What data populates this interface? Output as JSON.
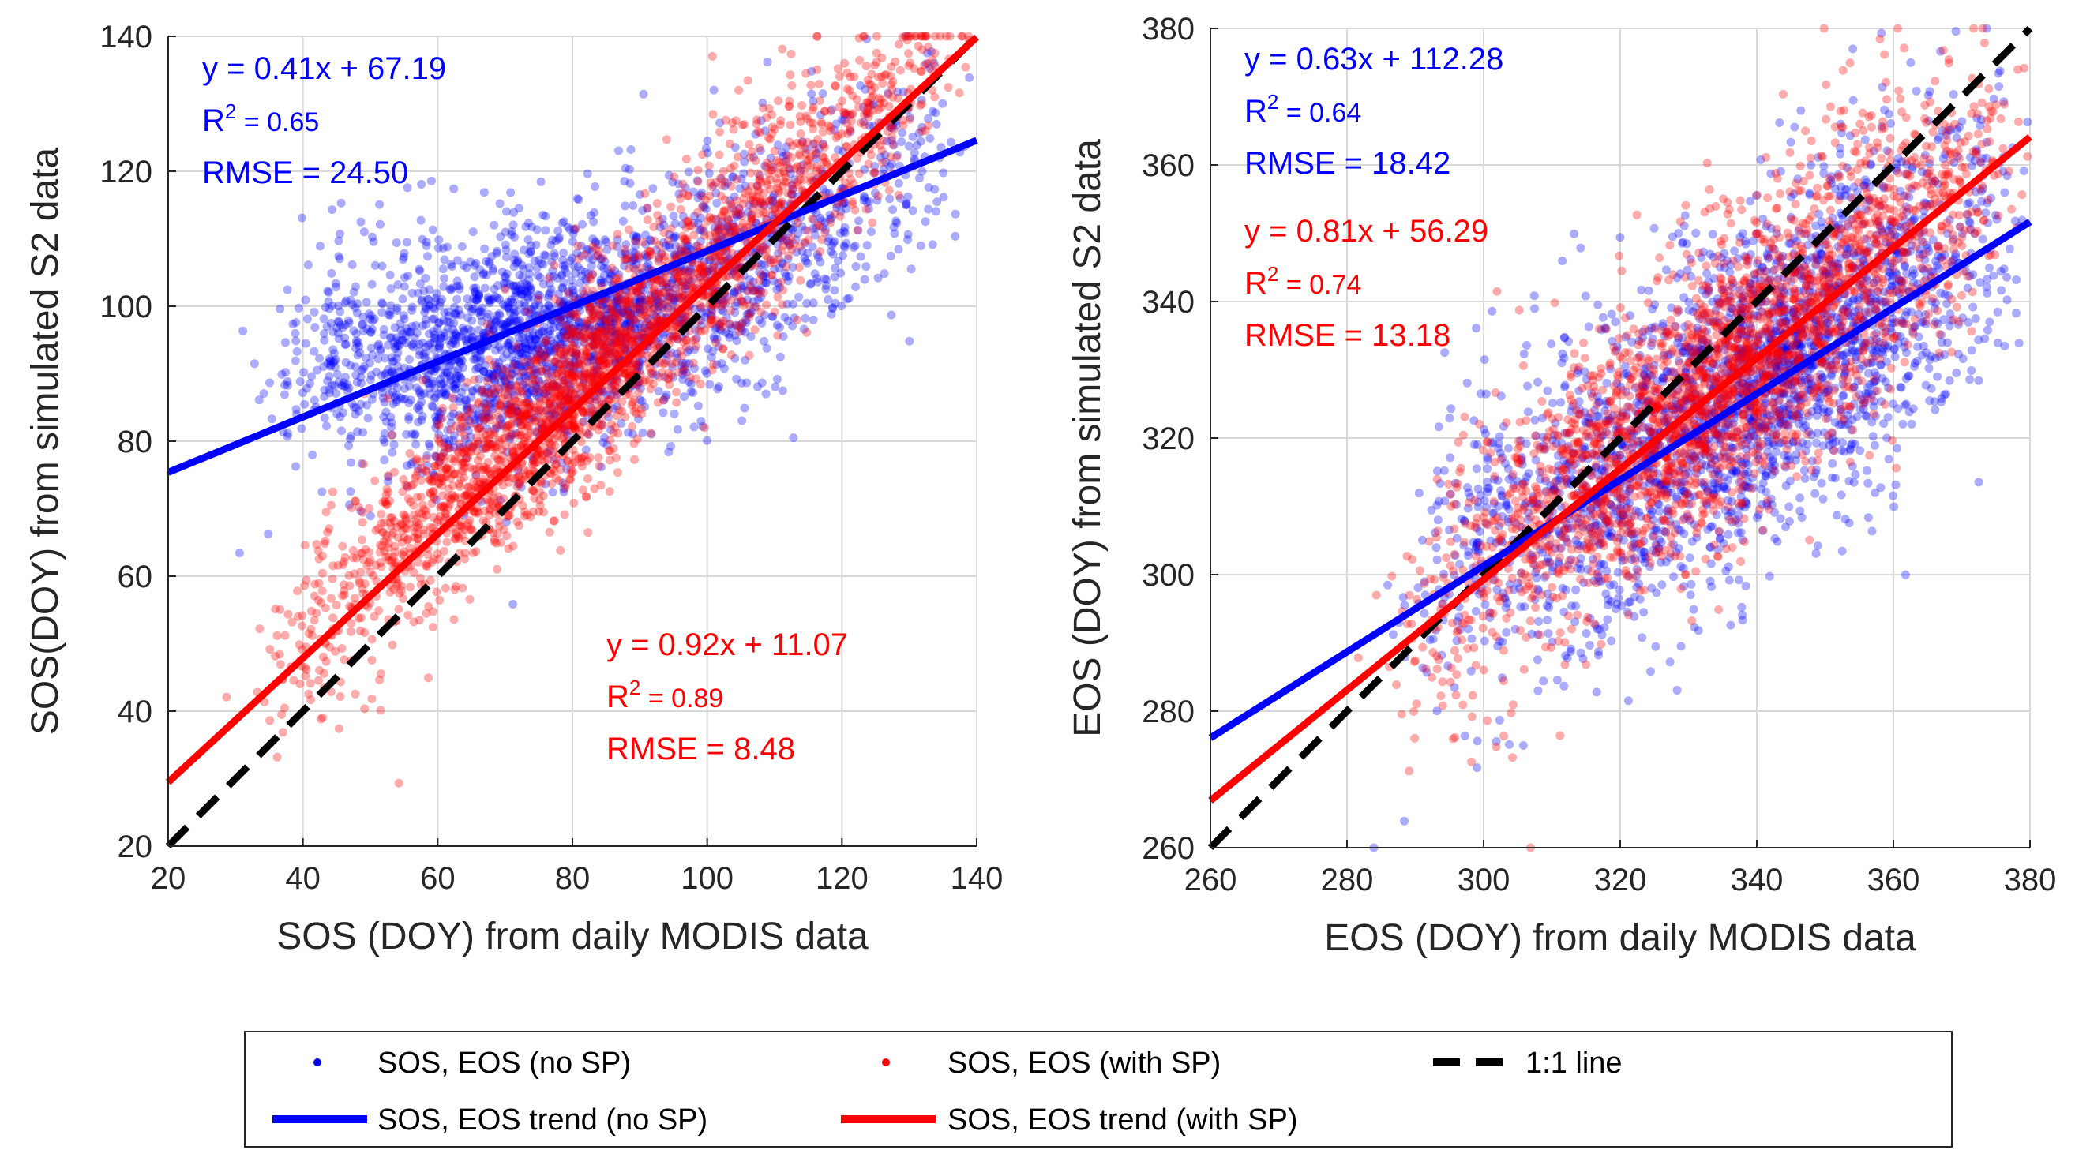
{
  "chart_data": [
    {
      "type": "scatter",
      "id": "sos",
      "xlabel": "SOS (DOY) from daily MODIS data",
      "ylabel": "SOS(DOY) from simulated S2 data",
      "xlim": [
        20,
        140
      ],
      "ylim": [
        20,
        140
      ],
      "xticks": [
        20,
        40,
        60,
        80,
        100,
        120,
        140
      ],
      "yticks": [
        20,
        40,
        60,
        80,
        100,
        120,
        140
      ],
      "xtick_labels": [
        "20",
        "40",
        "60",
        "80",
        "100",
        "120",
        "140"
      ],
      "ytick_labels": [
        "20",
        "40",
        "60",
        "80",
        "100",
        "120",
        "140"
      ],
      "grid": true,
      "series": [
        {
          "name": "SOS, EOS (no SP)",
          "color": "#0000ff",
          "trend": {
            "slope": 0.41,
            "intercept": 67.19
          },
          "annotation": {
            "equation": "y = 0.41x + 67.19",
            "r2_label": "R",
            "r2_sup": "2",
            "r2_value": " = 0.65",
            "rmse": "RMSE = 24.50"
          },
          "cloud": {
            "n": 2600,
            "xmin": 33,
            "xmax": 140,
            "xmode": 72,
            "sd": 8.5,
            "curve": "sos_blue"
          }
        },
        {
          "name": "SOS, EOS (with SP)",
          "color": "#ff0000",
          "trend": {
            "slope": 0.92,
            "intercept": 11.07
          },
          "annotation": {
            "equation": "y = 0.92x + 11.07",
            "r2_label": "R",
            "r2_sup": "2",
            "r2_value": " = 0.89",
            "rmse": "RMSE = 8.48"
          },
          "cloud": {
            "n": 2600,
            "xmin": 33,
            "xmax": 140,
            "xmode": 82,
            "sd": 7,
            "curve": "sos_red"
          }
        }
      ],
      "one_to_one": true
    },
    {
      "type": "scatter",
      "id": "eos",
      "xlabel": "EOS (DOY) from daily MODIS data",
      "ylabel": "EOS (DOY) from simulated S2 data",
      "xlim": [
        260,
        380
      ],
      "ylim": [
        260,
        380
      ],
      "xticks": [
        260,
        280,
        300,
        320,
        340,
        360,
        380
      ],
      "yticks": [
        260,
        280,
        300,
        320,
        340,
        360,
        380
      ],
      "xtick_labels": [
        "260",
        "280",
        "300",
        "320",
        "340",
        "360",
        "380"
      ],
      "ytick_labels": [
        "260",
        "280",
        "300",
        "320",
        "340",
        "360",
        "380"
      ],
      "grid": true,
      "series": [
        {
          "name": "SOS, EOS (no SP)",
          "color": "#0000ff",
          "trend": {
            "slope": 0.63,
            "intercept": 112.28
          },
          "annotation": {
            "equation": "y = 0.63x + 112.28",
            "r2_label": "R",
            "r2_sup": "2",
            "r2_value": " = 0.64",
            "rmse": "RMSE = 18.42"
          },
          "cloud": {
            "n": 2600,
            "xmin": 286,
            "xmax": 380,
            "xmode": 345,
            "sd": 12,
            "curve": "eos_blue"
          }
        },
        {
          "name": "SOS, EOS (with SP)",
          "color": "#ff0000",
          "trend": {
            "slope": 0.81,
            "intercept": 56.29
          },
          "annotation": {
            "equation": "y = 0.81x + 56.29",
            "r2_label": "R",
            "r2_sup": "2",
            "r2_value": " = 0.74",
            "rmse": "RMSE = 13.18"
          },
          "cloud": {
            "n": 2600,
            "xmin": 286,
            "xmax": 380,
            "xmode": 340,
            "sd": 10,
            "curve": "eos_red"
          }
        }
      ],
      "one_to_one": true
    }
  ],
  "legend": {
    "placement": "bottom-center",
    "items": [
      {
        "label": "SOS, EOS (no SP)",
        "kind": "marker",
        "color": "#0000ff"
      },
      {
        "label": "SOS, EOS (with SP)",
        "kind": "marker",
        "color": "#ff0000"
      },
      {
        "label": "1:1 line",
        "kind": "dashed",
        "color": "#000000"
      },
      {
        "label": "SOS, EOS trend (no SP)",
        "kind": "line",
        "color": "#0000ff"
      },
      {
        "label": "SOS, EOS trend (with SP)",
        "kind": "line",
        "color": "#ff0000"
      }
    ]
  }
}
